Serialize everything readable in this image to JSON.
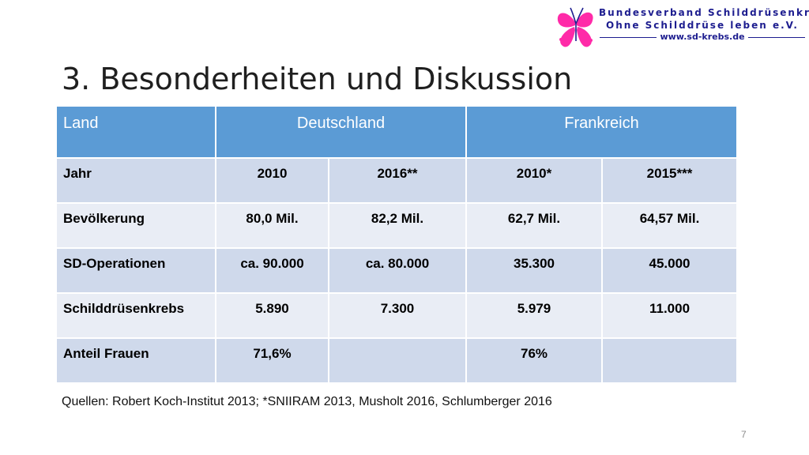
{
  "logo": {
    "line1": "Bundesverband Schilddrüsenkrebs",
    "line2": "Ohne Schilddrüse leben e.V.",
    "url": "www.sd-krebs.de"
  },
  "title": "3. Besonderheiten und Diskussion",
  "table": {
    "header": {
      "land": "Land",
      "de": "Deutschland",
      "fr": "Frankreich"
    },
    "rows": [
      {
        "label": "Jahr",
        "v1": "2010",
        "v2": "2016**",
        "v3": "2010*",
        "v4": "2015***"
      },
      {
        "label": "Bevölkerung",
        "v1": "80,0 Mil.",
        "v2": "82,2 Mil.",
        "v3": "62,7 Mil.",
        "v4": "64,57 Mil."
      },
      {
        "label": "SD-Operationen",
        "v1": "ca. 90.000",
        "v2": "ca. 80.000",
        "v3": "35.300",
        "v4": "45.000"
      },
      {
        "label": "Schilddrüsenkrebs",
        "v1": "5.890",
        "v2": "7.300",
        "v3": "5.979",
        "v4": "11.000"
      },
      {
        "label": "Anteil Frauen",
        "v1": "71,6%",
        "v2": "",
        "v3": "76%",
        "v4": ""
      }
    ]
  },
  "sources": "Quellen: Robert Koch-Institut 2013;  *SNIIRAM 2013, Musholt 2016, Schlumberger 2016",
  "page_number": "7",
  "colors": {
    "header_bg": "#5b9bd5",
    "row_odd": "#cfd9eb",
    "row_even": "#e9edf5",
    "logo_text": "#1d1d8f",
    "logo_mark": "#ff2aa8"
  }
}
